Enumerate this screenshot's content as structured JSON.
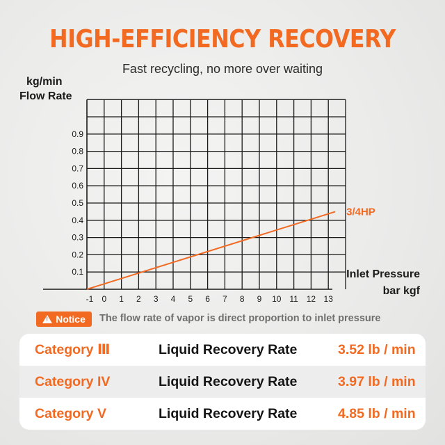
{
  "header": {
    "headline": "HIGH-EFFICIENCY RECOVERY",
    "subtitle": "Fast recycling, no more over waiting"
  },
  "chart_data": {
    "type": "line",
    "ylabel_top": "kg/min",
    "ylabel": "Flow Rate",
    "xlabel": "Inlet Pressure",
    "xlabel_unit": "bar kgf",
    "x_ticks": [
      "-1",
      "0",
      "1",
      "2",
      "3",
      "4",
      "5",
      "6",
      "7",
      "8",
      "9",
      "10",
      "11",
      "12",
      "13"
    ],
    "y_ticks": [
      "0.1",
      "0.2",
      "0.3",
      "0.4",
      "0.5",
      "0.6",
      "0.7",
      "0.8",
      "0.9"
    ],
    "xlim": [
      -1,
      14
    ],
    "ylim": [
      0,
      1.1
    ],
    "grid": true,
    "series": [
      {
        "name": "3/4HP",
        "x": [
          -1,
          13.4
        ],
        "y": [
          0,
          0.45
        ]
      }
    ],
    "line_color": "#f26a21"
  },
  "notice": {
    "badge": "Notice",
    "text": "The flow rate of vapor is direct proportion to inlet pressure"
  },
  "table": {
    "rows": [
      {
        "category": "Category Ⅲ",
        "label": "Liquid Recovery Rate",
        "value": "3.52 lb / min"
      },
      {
        "category": "Category IV",
        "label": "Liquid Recovery Rate",
        "value": "3.97 lb / min"
      },
      {
        "category": "Category V",
        "label": "Liquid Recovery Rate",
        "value": "4.85 lb / min"
      }
    ]
  },
  "colors": {
    "accent": "#f26a21",
    "text": "#1a1a1a"
  }
}
